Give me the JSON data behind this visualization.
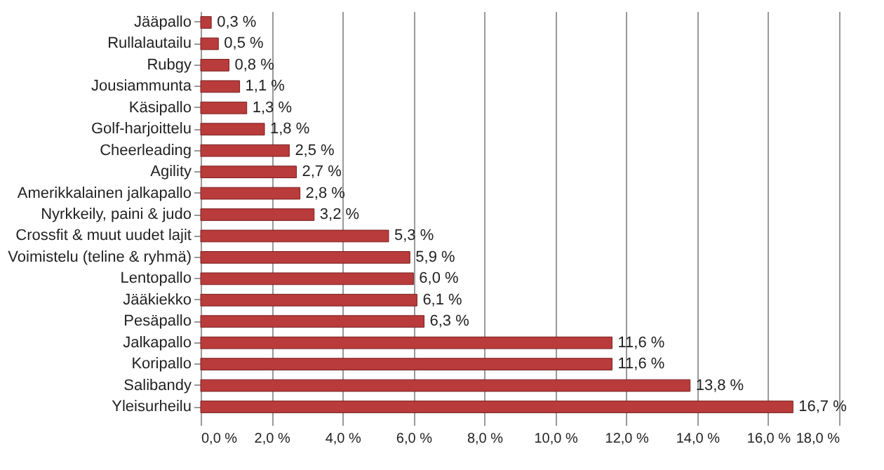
{
  "chart_data": {
    "type": "bar",
    "orientation": "horizontal",
    "categories": [
      "Jääpallo",
      "Rullalautailu",
      "Rubgy",
      "Jousiammunta",
      "Käsipallo",
      "Golf-harjoittelu",
      "Cheerleading",
      "Agility",
      "Amerikkalainen jalkapallo",
      "Nyrkkeily, paini & judo",
      "Crossfit & muut uudet lajit",
      "Voimistelu (teline & ryhmä)",
      "Lentopallo",
      "Jääkiekko",
      "Pesäpallo",
      "Jalkapallo",
      "Koripallo",
      "Salibandy",
      "Yleisurheilu"
    ],
    "values": [
      0.3,
      0.5,
      0.8,
      1.1,
      1.3,
      1.8,
      2.5,
      2.7,
      2.8,
      3.2,
      5.3,
      5.9,
      6.0,
      6.1,
      6.3,
      11.6,
      11.6,
      13.8,
      16.7
    ],
    "value_labels": [
      "0,3 %",
      "0,5 %",
      "0,8 %",
      "1,1 %",
      "1,3 %",
      "1,8 %",
      "2,5 %",
      "2,7 %",
      "2,8 %",
      "3,2 %",
      "5,3 %",
      "5,9 %",
      "6,0 %",
      "6,1 %",
      "6,3 %",
      "11,6 %",
      "11,6 %",
      "13,8 %",
      "16,7 %"
    ],
    "color": "#b93b3b",
    "xlim": [
      0,
      18
    ],
    "xticks": [
      {
        "value": 0,
        "label": "0,0 %"
      },
      {
        "value": 2,
        "label": "2,0 %"
      },
      {
        "value": 4,
        "label": "4,0 %"
      },
      {
        "value": 6,
        "label": "6,0 %"
      },
      {
        "value": 8,
        "label": "8,0 %"
      },
      {
        "value": 10,
        "label": "10,0 %"
      },
      {
        "value": 12,
        "label": "12,0 %"
      },
      {
        "value": 14,
        "label": "14,0 %"
      },
      {
        "value": 16,
        "label": "16,0 %"
      },
      {
        "value": 18,
        "label": "18,0 %"
      }
    ],
    "grid": "x"
  }
}
